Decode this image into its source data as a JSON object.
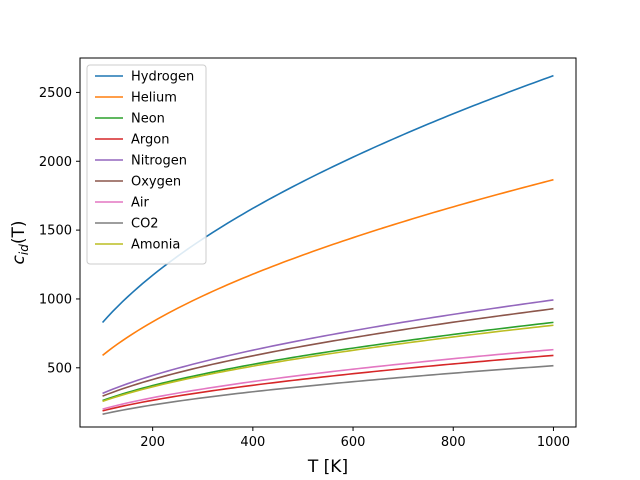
{
  "chart_data": {
    "type": "line",
    "title": "",
    "xlabel": "T [K]",
    "ylabel_main": "c",
    "ylabel_sub": "id",
    "ylabel_suffix": "(T)",
    "xlim": [
      55,
      1045
    ],
    "ylim": [
      70,
      2750
    ],
    "xticks": [
      200,
      400,
      600,
      800,
      1000
    ],
    "yticks": [
      500,
      1000,
      1500,
      2000,
      2500
    ],
    "grid": false,
    "legend_position": "top-left",
    "x": [
      100,
      200,
      300,
      400,
      500,
      600,
      700,
      800,
      900,
      1000
    ],
    "series": [
      {
        "name": "Hydrogen",
        "color": "#1f77b4",
        "values": [
          829,
          1172,
          1436,
          1658,
          1853,
          2030,
          2193,
          2345,
          2487,
          2622
        ]
      },
      {
        "name": "Helium",
        "color": "#ff7f0e",
        "values": [
          590,
          834,
          1022,
          1180,
          1319,
          1445,
          1561,
          1669,
          1770,
          1866
        ]
      },
      {
        "name": "Neon",
        "color": "#2ca02c",
        "values": [
          262,
          371,
          454,
          525,
          587,
          643,
          694,
          742,
          787,
          830
        ]
      },
      {
        "name": "Argon",
        "color": "#d62728",
        "values": [
          187,
          264,
          323,
          373,
          417,
          457,
          494,
          528,
          560,
          590
        ]
      },
      {
        "name": "Nitrogen",
        "color": "#9467bd",
        "values": [
          314,
          444,
          544,
          628,
          702,
          769,
          831,
          888,
          942,
          993
        ]
      },
      {
        "name": "Oxygen",
        "color": "#8c564b",
        "values": [
          294,
          415,
          509,
          587,
          657,
          719,
          777,
          831,
          881,
          929
        ]
      },
      {
        "name": "Air",
        "color": "#e377c2",
        "values": [
          200,
          283,
          346,
          400,
          447,
          490,
          529,
          566,
          600,
          632
        ]
      },
      {
        "name": "CO2",
        "color": "#7f7f7f",
        "values": [
          163,
          230,
          282,
          326,
          364,
          399,
          431,
          461,
          489,
          515
        ]
      },
      {
        "name": "Amonia",
        "color": "#bcbd22",
        "values": [
          256,
          362,
          443,
          512,
          572,
          627,
          677,
          724,
          768,
          809
        ]
      }
    ]
  }
}
